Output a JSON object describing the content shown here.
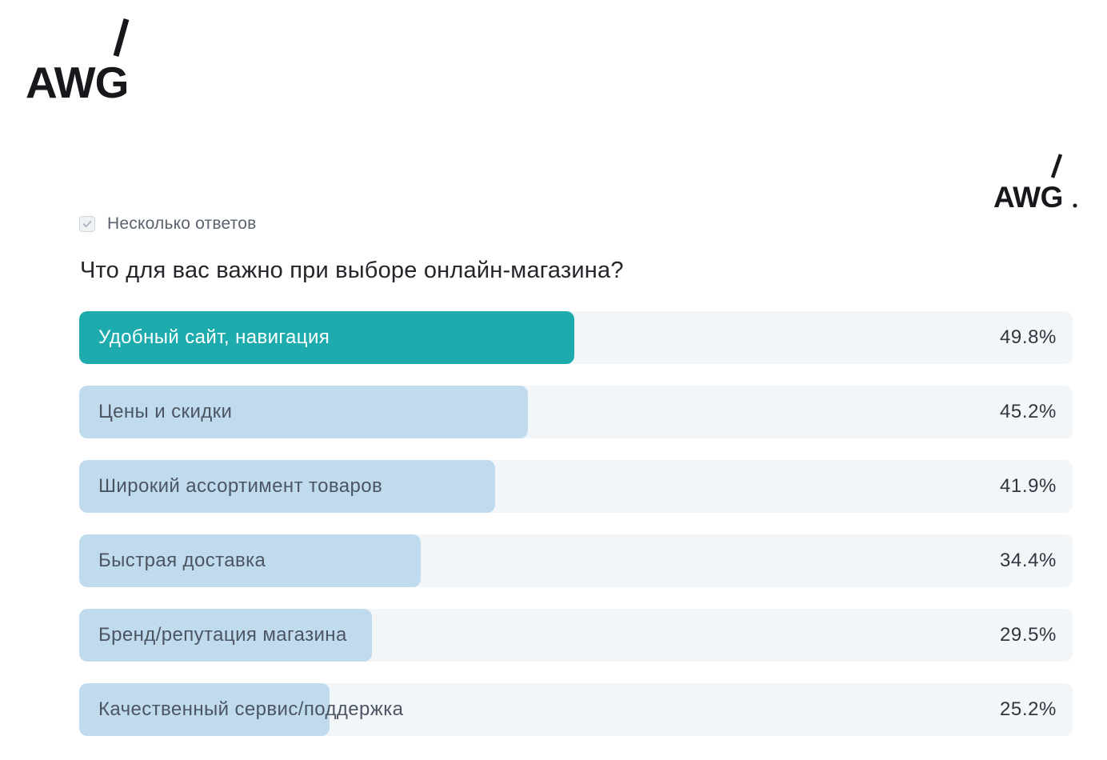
{
  "logos": {
    "main": "AWG",
    "corner": "AWG"
  },
  "poll": {
    "multi_answer_label": "Несколько ответов",
    "multi_answer_checked": true,
    "question": "Что для вас важно при выборе онлайн-магазина?",
    "options": [
      {
        "label": "Удобный сайт, навигация",
        "percent": "49.8%",
        "value": 49.8,
        "selected": true
      },
      {
        "label": "Цены и скидки",
        "percent": "45.2%",
        "value": 45.2,
        "selected": false
      },
      {
        "label": "Широкий ассортимент товаров",
        "percent": "41.9%",
        "value": 41.9,
        "selected": false
      },
      {
        "label": "Быстрая доставка",
        "percent": "34.4%",
        "value": 34.4,
        "selected": false
      },
      {
        "label": "Бренд/репутация магазина",
        "percent": "29.5%",
        "value": 29.5,
        "selected": false
      },
      {
        "label": "Качественный сервис/поддержка",
        "percent": "25.2%",
        "value": 25.2,
        "selected": false
      }
    ]
  },
  "colors": {
    "selected_fill": "#1eabad",
    "fill": "#c1dbee",
    "track": "#f3f6f9"
  }
}
